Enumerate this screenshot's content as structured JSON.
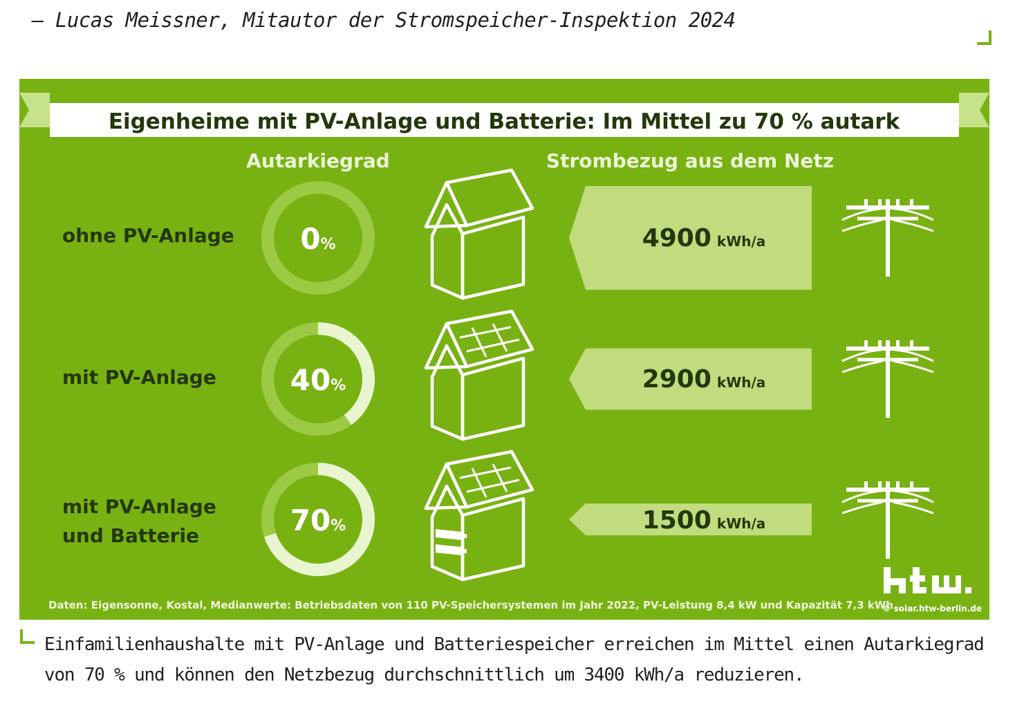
{
  "quote": "– Lucas Meissner, Mitautor der Stromspeicher-Inspektion 2024",
  "caption": "Einfamilienhaushalte mit PV-Anlage und Batteriespeicher erreichen im Mittel einen Autarkiegrad von 70 % und können den Netzbezug durchschnittlich um 3400 kWh/a reduzieren.",
  "colors": {
    "background_green": "#78b212",
    "light_green": "#c0dc7e",
    "ring_track": "#9dca45",
    "ring_fill": "#e9f5d0",
    "dark_text": "#23380b",
    "accent_corner": "#78b212"
  },
  "chart_data": {
    "type": "bar",
    "title": "Eigenheime mit PV-Anlage und Batterie: Im Mittel zu 70 % autark",
    "column_headers": {
      "autarky": "Autarkiegrad",
      "grid": "Strombezug aus dem Netz"
    },
    "categories": [
      "ohne PV-Anlage",
      "mit PV-Anlage",
      "mit PV-Anlage und Batterie"
    ],
    "category_lines": [
      [
        "ohne PV-Anlage"
      ],
      [
        "mit PV-Anlage"
      ],
      [
        "mit PV-Anlage",
        "und Batterie"
      ]
    ],
    "autarky_percent": [
      0,
      40,
      70
    ],
    "autarky_labels": [
      "0",
      "40",
      "70"
    ],
    "percent_unit": "%",
    "grid_consumption": [
      4900,
      2900,
      1500
    ],
    "grid_labels": [
      "4900",
      "2900",
      "1500"
    ],
    "grid_unit": "kWh/a",
    "house_icons": [
      "house-icon",
      "house-solar-icon",
      "house-solar-battery-icon"
    ],
    "pole_icon": "power-pole-icon",
    "footnote": "Daten: Eigensonne, Kostal, Medianwerte: Betriebsdaten von 110 PV-Speichersystemen im Jahr 2022, PV-Leistung 8,4 kW und Kapazität 7,3 kWh",
    "logo_text": "htw.",
    "credit": "© solar.htw-berlin.de"
  }
}
